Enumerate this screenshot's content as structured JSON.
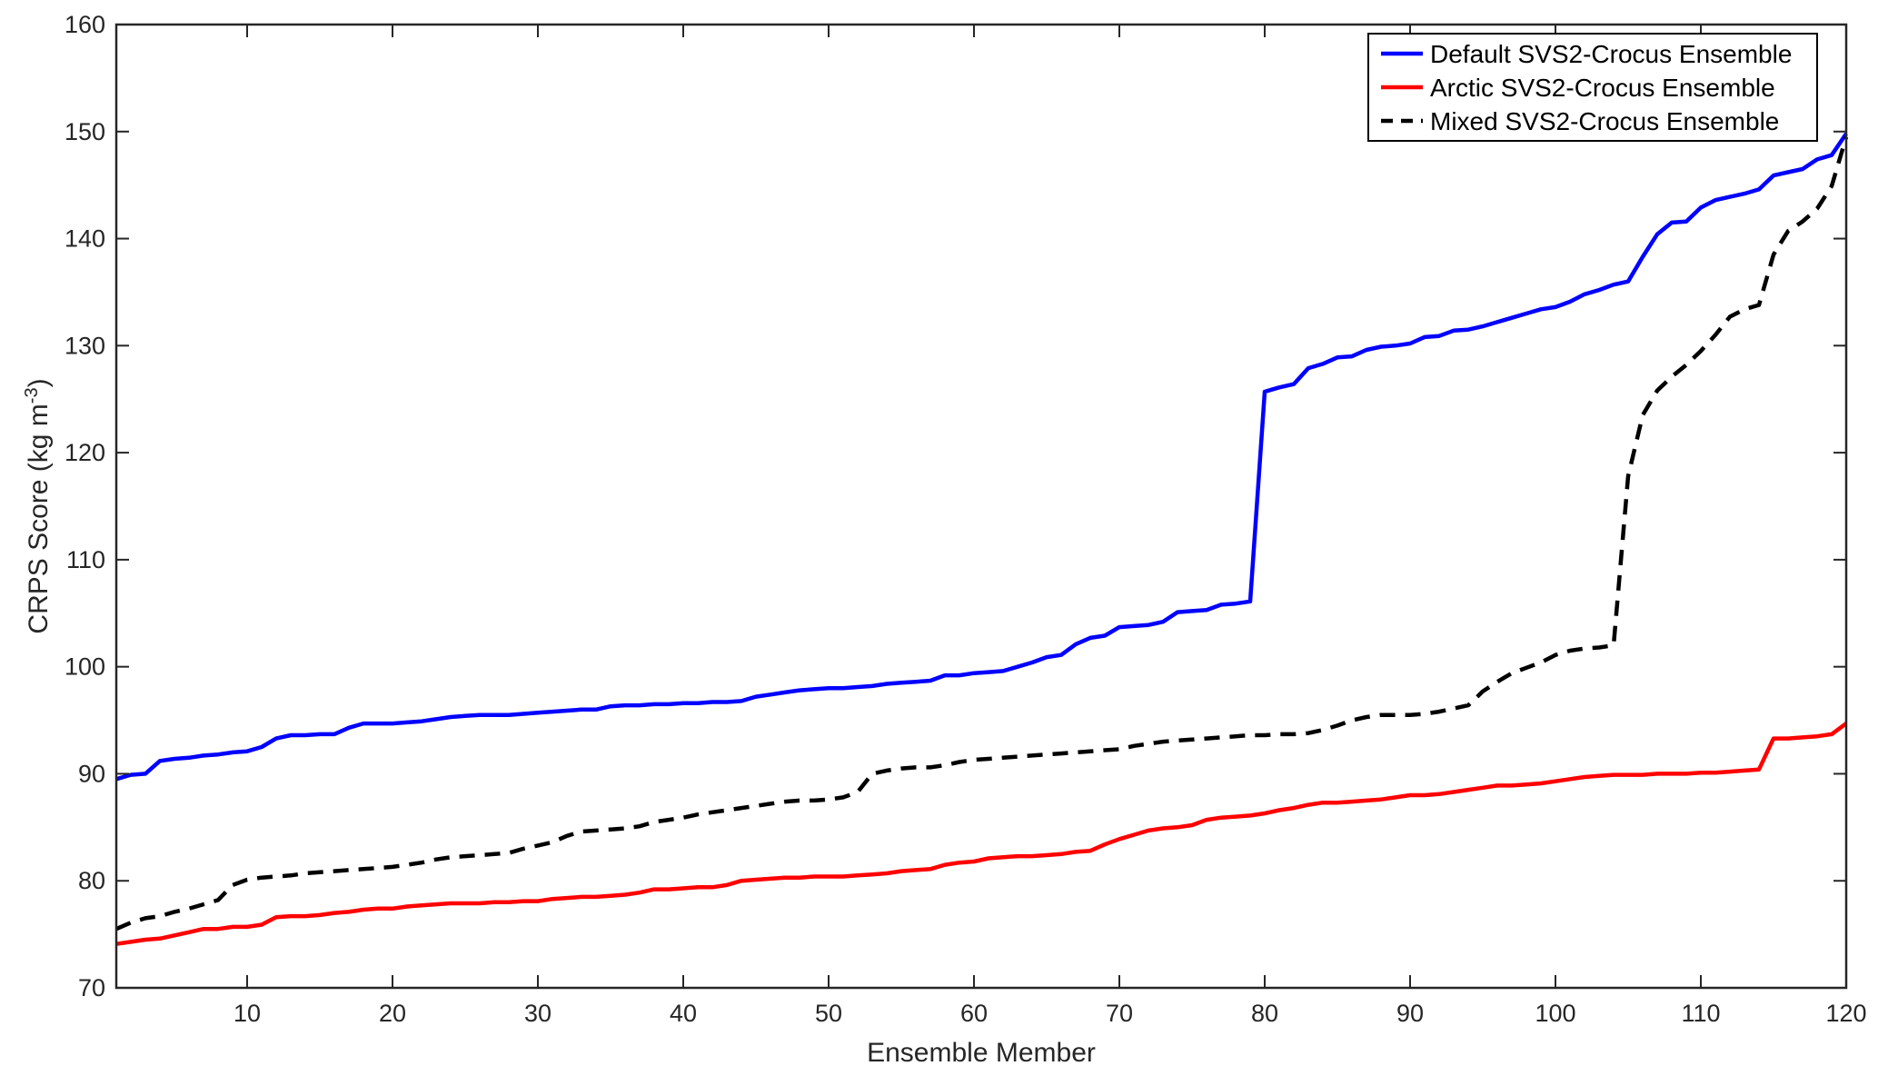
{
  "chart_data": {
    "type": "line",
    "title": "",
    "xlabel": "Ensemble Member",
    "ylabel": {
      "main": "CRPS Score (kg m",
      "sup": "-3",
      "end": ")"
    },
    "xlim": [
      1,
      120
    ],
    "ylim": [
      70,
      160
    ],
    "xticks": [
      10,
      20,
      30,
      40,
      50,
      60,
      70,
      80,
      90,
      100,
      110,
      120
    ],
    "yticks": [
      70,
      80,
      90,
      100,
      110,
      120,
      130,
      140,
      150,
      160
    ],
    "grid": false,
    "legend_position": "top-right",
    "x_start": 1,
    "series": [
      {
        "name": "Default SVS2-Crocus Ensemble",
        "color": "#0000ff",
        "style": "solid",
        "values": [
          89.5,
          89.9,
          90.0,
          91.2,
          91.4,
          91.5,
          91.7,
          91.8,
          92.0,
          92.1,
          92.5,
          93.3,
          93.6,
          93.6,
          93.7,
          93.7,
          94.3,
          94.7,
          94.7,
          94.7,
          94.8,
          94.9,
          95.1,
          95.3,
          95.4,
          95.5,
          95.5,
          95.5,
          95.6,
          95.7,
          95.8,
          95.9,
          96.0,
          96.0,
          96.3,
          96.4,
          96.4,
          96.5,
          96.5,
          96.6,
          96.6,
          96.7,
          96.7,
          96.8,
          97.2,
          97.4,
          97.6,
          97.8,
          97.9,
          98.0,
          98.0,
          98.1,
          98.2,
          98.4,
          98.5,
          98.6,
          98.7,
          99.2,
          99.2,
          99.4,
          99.5,
          99.6,
          100.0,
          100.4,
          100.9,
          101.1,
          102.1,
          102.7,
          102.9,
          103.7,
          103.8,
          103.9,
          104.2,
          105.1,
          105.2,
          105.3,
          105.8,
          105.9,
          106.1,
          125.7,
          126.1,
          126.4,
          127.9,
          128.3,
          128.9,
          129.0,
          129.6,
          129.9,
          130.0,
          130.2,
          130.8,
          130.9,
          131.4,
          131.5,
          131.8,
          132.2,
          132.6,
          133.0,
          133.4,
          133.6,
          134.1,
          134.8,
          135.2,
          135.7,
          136.0,
          138.3,
          140.4,
          141.5,
          141.6,
          142.9,
          143.6,
          143.9,
          144.2,
          144.6,
          145.9,
          146.2,
          146.5,
          147.4,
          147.8,
          149.8
        ]
      },
      {
        "name": "Arctic SVS2-Crocus Ensemble",
        "color": "#ff0000",
        "style": "solid",
        "values": [
          74.1,
          74.3,
          74.5,
          74.6,
          74.9,
          75.2,
          75.5,
          75.5,
          75.7,
          75.7,
          75.9,
          76.6,
          76.7,
          76.7,
          76.8,
          77.0,
          77.1,
          77.3,
          77.4,
          77.4,
          77.6,
          77.7,
          77.8,
          77.9,
          77.9,
          77.9,
          78.0,
          78.0,
          78.1,
          78.1,
          78.3,
          78.4,
          78.5,
          78.5,
          78.6,
          78.7,
          78.9,
          79.2,
          79.2,
          79.3,
          79.4,
          79.4,
          79.6,
          80.0,
          80.1,
          80.2,
          80.3,
          80.3,
          80.4,
          80.4,
          80.4,
          80.5,
          80.6,
          80.7,
          80.9,
          81.0,
          81.1,
          81.5,
          81.7,
          81.8,
          82.1,
          82.2,
          82.3,
          82.3,
          82.4,
          82.5,
          82.7,
          82.8,
          83.4,
          83.9,
          84.3,
          84.7,
          84.9,
          85.0,
          85.2,
          85.7,
          85.9,
          86.0,
          86.1,
          86.3,
          86.6,
          86.8,
          87.1,
          87.3,
          87.3,
          87.4,
          87.5,
          87.6,
          87.8,
          88.0,
          88.0,
          88.1,
          88.3,
          88.5,
          88.7,
          88.9,
          88.9,
          89.0,
          89.1,
          89.3,
          89.5,
          89.7,
          89.8,
          89.9,
          89.9,
          89.9,
          90.0,
          90.0,
          90.0,
          90.1,
          90.1,
          90.2,
          90.3,
          90.4,
          93.3,
          93.3,
          93.4,
          93.5,
          93.7,
          94.7
        ]
      },
      {
        "name": "Mixed SVS2-Crocus Ensemble",
        "color": "#000000",
        "style": "dashed",
        "values": [
          75.5,
          76.1,
          76.5,
          76.7,
          77.1,
          77.4,
          77.8,
          78.2,
          79.6,
          80.1,
          80.3,
          80.4,
          80.5,
          80.7,
          80.8,
          80.9,
          81.0,
          81.1,
          81.2,
          81.3,
          81.5,
          81.7,
          82.0,
          82.2,
          82.3,
          82.4,
          82.5,
          82.6,
          83.0,
          83.3,
          83.6,
          84.2,
          84.6,
          84.7,
          84.8,
          84.9,
          85.1,
          85.5,
          85.7,
          85.9,
          86.2,
          86.4,
          86.6,
          86.8,
          87.0,
          87.2,
          87.4,
          87.5,
          87.5,
          87.6,
          87.8,
          88.3,
          90.0,
          90.3,
          90.5,
          90.6,
          90.6,
          90.8,
          91.1,
          91.3,
          91.4,
          91.5,
          91.6,
          91.7,
          91.8,
          91.9,
          92.0,
          92.1,
          92.2,
          92.3,
          92.6,
          92.8,
          93.0,
          93.1,
          93.2,
          93.3,
          93.4,
          93.5,
          93.6,
          93.6,
          93.7,
          93.7,
          93.8,
          94.1,
          94.5,
          95.0,
          95.3,
          95.5,
          95.5,
          95.5,
          95.6,
          95.8,
          96.1,
          96.4,
          97.7,
          98.6,
          99.4,
          99.9,
          100.4,
          101.1,
          101.5,
          101.7,
          101.8,
          102.0,
          117.8,
          123.5,
          125.8,
          127.1,
          128.2,
          129.5,
          131.0,
          132.7,
          133.4,
          133.8,
          138.5,
          140.7,
          141.6,
          142.8,
          144.9,
          149.5
        ]
      }
    ]
  }
}
